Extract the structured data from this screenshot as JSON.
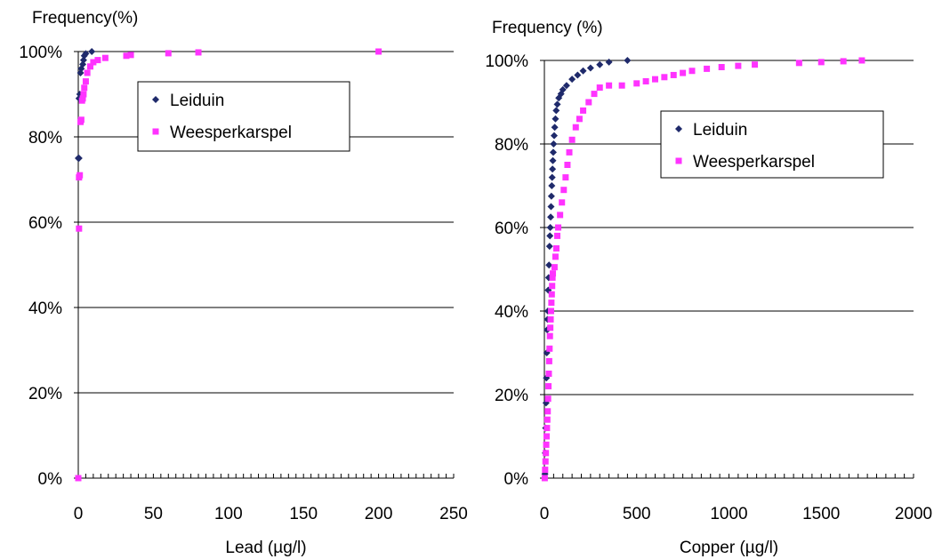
{
  "chart_data": [
    {
      "type": "scatter",
      "ylabel": "Frequency(%)",
      "xlabel": "Lead (µg/l)",
      "xlim": [
        0,
        250
      ],
      "ylim": [
        0,
        100
      ],
      "x_ticks": [
        "0",
        "50",
        "100",
        "150",
        "200",
        "250"
      ],
      "y_ticks": [
        "0%",
        "20%",
        "40%",
        "60%",
        "80%",
        "100%"
      ],
      "grid": "horizontal",
      "legend_position": "top-right",
      "series": [
        {
          "name": "Leiduin",
          "color": "#1f2a6b",
          "marker": "diamond",
          "points": [
            [
              0,
              75
            ],
            [
              0.5,
              75
            ],
            [
              0.5,
              89
            ],
            [
              1,
              90
            ],
            [
              1.5,
              95
            ],
            [
              2,
              96
            ],
            [
              3,
              97
            ],
            [
              3.5,
              98
            ],
            [
              4,
              99
            ],
            [
              5,
              99.5
            ],
            [
              9,
              100
            ]
          ]
        },
        {
          "name": "Weesperkarspel",
          "color": "#ff33ff",
          "marker": "square",
          "points": [
            [
              0,
              0
            ],
            [
              0.5,
              58.5
            ],
            [
              0.5,
              70.5
            ],
            [
              1,
              71
            ],
            [
              1.5,
              83.5
            ],
            [
              2,
              84
            ],
            [
              2.5,
              88.5
            ],
            [
              3,
              89
            ],
            [
              3.5,
              90
            ],
            [
              4,
              91.5
            ],
            [
              5,
              93
            ],
            [
              6,
              95
            ],
            [
              8,
              96.5
            ],
            [
              10,
              97.5
            ],
            [
              13,
              98
            ],
            [
              18,
              98.5
            ],
            [
              32,
              99
            ],
            [
              35,
              99.2
            ],
            [
              60,
              99.6
            ],
            [
              80,
              99.8
            ],
            [
              200,
              100
            ]
          ]
        }
      ]
    },
    {
      "type": "scatter",
      "ylabel": "Frequency (%)",
      "xlabel": "Copper (µg/l)",
      "xlim": [
        0,
        2000
      ],
      "ylim": [
        0,
        100
      ],
      "x_ticks": [
        "0",
        "500",
        "1000",
        "1500",
        "2000"
      ],
      "y_ticks": [
        "0%",
        "20%",
        "40%",
        "60%",
        "80%",
        "100%"
      ],
      "grid": "horizontal",
      "legend_position": "top-right",
      "series": [
        {
          "name": "Leiduin",
          "color": "#1f2a6b",
          "marker": "diamond",
          "points": [
            [
              3,
              1
            ],
            [
              5,
              6
            ],
            [
              7,
              12
            ],
            [
              9,
              18
            ],
            [
              11,
              24
            ],
            [
              13,
              30
            ],
            [
              15,
              35.5
            ],
            [
              17,
              38
            ],
            [
              19,
              40
            ],
            [
              21,
              45
            ],
            [
              23,
              48
            ],
            [
              25,
              51
            ],
            [
              28,
              55.5
            ],
            [
              30,
              58
            ],
            [
              32,
              60
            ],
            [
              34,
              62.5
            ],
            [
              36,
              65
            ],
            [
              38,
              67.5
            ],
            [
              40,
              70
            ],
            [
              42,
              72
            ],
            [
              44,
              74
            ],
            [
              46,
              76
            ],
            [
              48,
              78
            ],
            [
              50,
              80
            ],
            [
              53,
              82
            ],
            [
              56,
              84
            ],
            [
              60,
              86
            ],
            [
              64,
              88
            ],
            [
              70,
              89.5
            ],
            [
              78,
              91
            ],
            [
              90,
              92
            ],
            [
              100,
              93
            ],
            [
              120,
              94
            ],
            [
              150,
              95.5
            ],
            [
              180,
              96.5
            ],
            [
              210,
              97.5
            ],
            [
              250,
              98.2
            ],
            [
              300,
              99
            ],
            [
              350,
              99.6
            ],
            [
              450,
              100
            ]
          ]
        },
        {
          "name": "Weesperkarspel",
          "color": "#ff33ff",
          "marker": "square",
          "points": [
            [
              2,
              0
            ],
            [
              4,
              2
            ],
            [
              6,
              4
            ],
            [
              8,
              6
            ],
            [
              10,
              8
            ],
            [
              12,
              10
            ],
            [
              14,
              12
            ],
            [
              16,
              14
            ],
            [
              18,
              16
            ],
            [
              20,
              19
            ],
            [
              22,
              22
            ],
            [
              24,
              25
            ],
            [
              26,
              28
            ],
            [
              28,
              31
            ],
            [
              30,
              34
            ],
            [
              32,
              36
            ],
            [
              34,
              38
            ],
            [
              36,
              40
            ],
            [
              38,
              42
            ],
            [
              40,
              44
            ],
            [
              42,
              46
            ],
            [
              44,
              48
            ],
            [
              46,
              49
            ],
            [
              55,
              50.5
            ],
            [
              60,
              53
            ],
            [
              65,
              55
            ],
            [
              70,
              58
            ],
            [
              75,
              60
            ],
            [
              85,
              63
            ],
            [
              95,
              66
            ],
            [
              105,
              69
            ],
            [
              115,
              72
            ],
            [
              125,
              75
            ],
            [
              135,
              78
            ],
            [
              150,
              81
            ],
            [
              170,
              84
            ],
            [
              190,
              86
            ],
            [
              210,
              88
            ],
            [
              240,
              90
            ],
            [
              270,
              92
            ],
            [
              300,
              93.5
            ],
            [
              350,
              94
            ],
            [
              420,
              94
            ],
            [
              500,
              94.5
            ],
            [
              550,
              95
            ],
            [
              600,
              95.5
            ],
            [
              650,
              96
            ],
            [
              700,
              96.5
            ],
            [
              750,
              97
            ],
            [
              800,
              97.5
            ],
            [
              880,
              98
            ],
            [
              960,
              98.4
            ],
            [
              1050,
              98.7
            ],
            [
              1140,
              99
            ],
            [
              1380,
              99.4
            ],
            [
              1500,
              99.6
            ],
            [
              1620,
              99.8
            ],
            [
              1720,
              100
            ]
          ]
        }
      ]
    }
  ]
}
